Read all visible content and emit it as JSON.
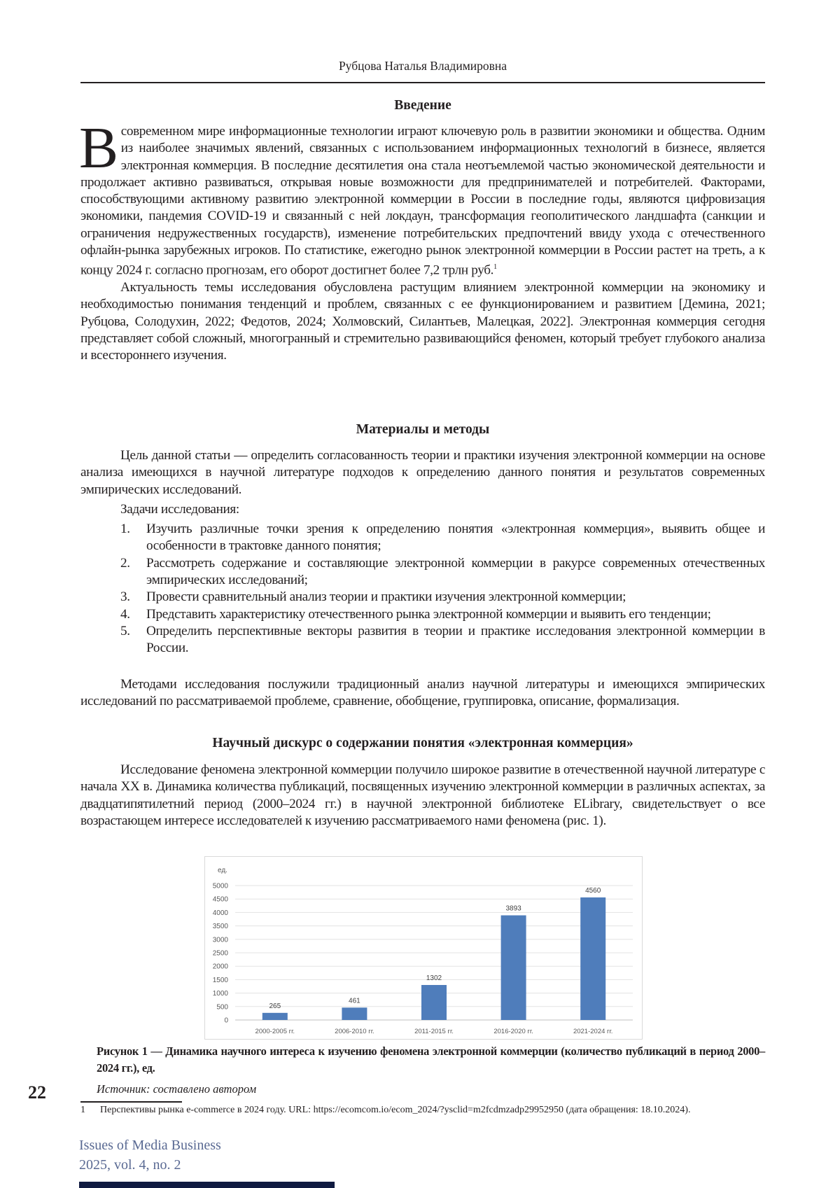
{
  "header": {
    "author": "Рубцова Наталья Владимировна"
  },
  "sections": {
    "intro": {
      "title": "Введение",
      "drop_cap": "В",
      "p1": " современном мире информационные технологии играют ключевую роль в развитии экономики и общества. Одним из наиболее значимых явлений, связанных с использованием информационных технологий в бизнесе, является электронная коммерция. В последние десятилетия она стала неотъемлемой частью экономической деятельности и продолжает активно развиваться, открывая новые возможности для предпринимателей и потребителей. Факторами, способствующими активному развитию электронной коммерции в России в последние годы, являются цифровизация экономики, пандемия COVID-19 и связанный с ней локдаун, трансформация геополитического ландшафта (санкции и ограничения недружественных государств), изменение потребительских предпочтений ввиду ухода с отечественного офлайн-рынка зарубежных игроков. По статистике, ежегодно рынок электронной коммерции в России растет на треть, а к концу 2024 г. согласно прогнозам, его оборот достигнет более 7,2 трлн руб.",
      "p1_footnote_ref": "1",
      "p2": "Актуальность темы исследования обусловлена растущим влиянием электронной коммерции на экономику и необходимостью понимания тенденций и проблем, связанных с ее функционированием и развитием [Демина, 2021; Рубцова, Солодухин, 2022; Федотов, 2024; Холмовский, Силантьев, Малецкая, 2022]. Электронная коммерция сегодня представляет собой сложный, многогранный и стремительно развивающийся феномен, который требует глубокого анализа и всестороннего изучения."
    },
    "methods": {
      "title": "Материалы и методы",
      "p1": "Цель данной статьи — определить согласованность теории и практики изучения электронной коммерции на основе анализа имеющихся в научной литературе подходов к определению данного понятия и результатов современных эмпирических исследований.",
      "tasks_label": "Задачи исследования:",
      "tasks": [
        {
          "num": "1.",
          "text": "Изучить различные точки зрения к определению понятия «электронная коммерция», выявить общее и особенности в трактовке данного понятия;"
        },
        {
          "num": "2.",
          "text": "Рассмотреть содержание и составляющие электронной коммерции в ракурсе современных отечественных эмпирических исследований;"
        },
        {
          "num": "3.",
          "text": "Провести сравнительный анализ теории и практики изучения электронной коммерции;"
        },
        {
          "num": "4.",
          "text": "Представить характеристику отечественного рынка электронной коммерции и выявить его тенденции;"
        },
        {
          "num": "5.",
          "text": "Определить перспективные векторы развития в теории и практике исследования электронной коммерции в России."
        }
      ],
      "p2": "Методами исследования послужили традиционный анализ научной литературы и имеющихся эмпирических исследований по рассматриваемой проблеме, сравнение, обобщение, группировка, описание, формализация."
    },
    "discourse": {
      "title": "Научный дискурс о содержании понятия «электронная коммерция»",
      "p1": "Исследование феномена электронной коммерции получило широкое развитие в отечественной научной литературе с начала XX в. Динамика количества публикаций, посвященных изучению электронной коммерции в различных аспектах, за двадцатипятилетний период (2000–2024 гг.) в научной электронной библиотеке ELibrary, свидетельствует о все возрастающем интересе исследователей к изучению рассматриваемого нами феномена (рис. 1)."
    }
  },
  "chart_data": {
    "type": "bar",
    "categories": [
      "2000-2005 гг.",
      "2006-2010 гг.",
      "2011-2015 гг.",
      "2016-2020 гг.",
      "2021-2024 гг."
    ],
    "values": [
      265,
      461,
      1302,
      3893,
      4560
    ],
    "data_labels": [
      "265",
      "461",
      "1302",
      "3893",
      "4560"
    ],
    "ylabel": "ед.",
    "ylim": [
      0,
      5000
    ],
    "yticks": [
      "0",
      "500",
      "1000",
      "1500",
      "2000",
      "2500",
      "3000",
      "3500",
      "4000",
      "4500",
      "5000"
    ],
    "grid": true,
    "bar_color": "#4f7dbb"
  },
  "figure": {
    "caption": "Рисунок 1 — Динамика научного интереса к изучению феномена электронной коммерции (количество публикаций в период 2000–2024 гг.), ед.",
    "source": "Источник: составлено автором"
  },
  "page_number": "22",
  "footnote": {
    "num": "1",
    "text": "Перспективы рынка e-commerce в 2024 году. URL: https://ecomcom.io/ecom_2024/?ysclid=m2fcdmzadp29952950 (дата обращения: 18.10.2024)."
  },
  "journal": {
    "name": "Issues of Media Business",
    "issue": "2025, vol. 4, no. 2"
  }
}
